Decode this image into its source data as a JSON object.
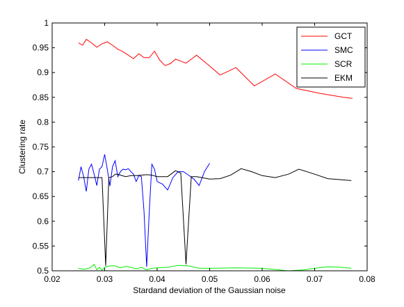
{
  "chart_data": {
    "type": "line",
    "xlabel": "Stardand deviation of the Gaussian noise",
    "ylabel": "Clustering rate",
    "xlim": [
      0.02,
      0.08
    ],
    "ylim": [
      0.5,
      1.0
    ],
    "x_ticks": [
      "0.02",
      "0.03",
      "0.04",
      "0.05",
      "0.06",
      "0.07",
      "0.08"
    ],
    "y_ticks": [
      "0.5",
      "0.55",
      "0.6",
      "0.65",
      "0.7",
      "0.75",
      "0.8",
      "0.85",
      "0.9",
      "0.95",
      "1"
    ],
    "grid": false,
    "legend_position": "top-right",
    "series": [
      {
        "name": "GCT",
        "color": "#ff0000",
        "x": [
          0.025,
          0.0258,
          0.0265,
          0.0275,
          0.0285,
          0.0295,
          0.0305,
          0.0315,
          0.0325,
          0.0335,
          0.0345,
          0.0355,
          0.0365,
          0.0375,
          0.0385,
          0.0395,
          0.0405,
          0.0415,
          0.0425,
          0.0435,
          0.0445,
          0.0455,
          0.0465,
          0.0475,
          0.049,
          0.052,
          0.055,
          0.0585,
          0.0625,
          0.0665,
          0.071,
          0.0755,
          0.0772
        ],
        "y": [
          0.96,
          0.955,
          0.967,
          0.96,
          0.951,
          0.958,
          0.962,
          0.955,
          0.947,
          0.942,
          0.935,
          0.928,
          0.938,
          0.93,
          0.93,
          0.943,
          0.925,
          0.914,
          0.918,
          0.927,
          0.923,
          0.919,
          0.927,
          0.935,
          0.922,
          0.895,
          0.91,
          0.873,
          0.897,
          0.868,
          0.858,
          0.85,
          0.848
        ]
      },
      {
        "name": "SMC",
        "color": "#0000ff",
        "x": [
          0.025,
          0.0255,
          0.026,
          0.0265,
          0.027,
          0.0275,
          0.028,
          0.0285,
          0.029,
          0.0295,
          0.03,
          0.0305,
          0.031,
          0.0315,
          0.032,
          0.0325,
          0.033,
          0.0335,
          0.034,
          0.0345,
          0.035,
          0.0355,
          0.036,
          0.0365,
          0.037,
          0.0375,
          0.038,
          0.0385,
          0.039,
          0.0395,
          0.04,
          0.041,
          0.042,
          0.043,
          0.044,
          0.045,
          0.046,
          0.047,
          0.048,
          0.049,
          0.05
        ],
        "y": [
          0.682,
          0.71,
          0.69,
          0.66,
          0.705,
          0.715,
          0.695,
          0.672,
          0.705,
          0.71,
          0.735,
          0.705,
          0.671,
          0.71,
          0.722,
          0.69,
          0.7,
          0.705,
          0.704,
          0.706,
          0.7,
          0.695,
          0.68,
          0.692,
          0.69,
          0.62,
          0.508,
          0.62,
          0.715,
          0.705,
          0.68,
          0.675,
          0.663,
          0.688,
          0.7,
          0.7,
          0.693,
          0.685,
          0.672,
          0.7,
          0.717
        ]
      },
      {
        "name": "SCR",
        "color": "#00ee00",
        "x": [
          0.025,
          0.026,
          0.027,
          0.0275,
          0.028,
          0.0285,
          0.029,
          0.0295,
          0.03,
          0.031,
          0.032,
          0.033,
          0.034,
          0.035,
          0.036,
          0.037,
          0.038,
          0.039,
          0.04,
          0.042,
          0.044,
          0.046,
          0.048,
          0.05,
          0.055,
          0.06,
          0.065,
          0.068,
          0.07,
          0.0725,
          0.075,
          0.077
        ],
        "y": [
          0.505,
          0.503,
          0.505,
          0.508,
          0.513,
          0.502,
          0.507,
          0.501,
          0.507,
          0.51,
          0.51,
          0.506,
          0.509,
          0.507,
          0.504,
          0.507,
          0.502,
          0.505,
          0.506,
          0.507,
          0.511,
          0.51,
          0.505,
          0.505,
          0.506,
          0.505,
          0.5,
          0.502,
          0.505,
          0.508,
          0.507,
          0.505
        ]
      },
      {
        "name": "EKM",
        "color": "#000000",
        "x": [
          0.025,
          0.026,
          0.027,
          0.0285,
          0.0295,
          0.0302,
          0.0308,
          0.0315,
          0.032,
          0.0325,
          0.033,
          0.034,
          0.035,
          0.036,
          0.037,
          0.038,
          0.039,
          0.04,
          0.041,
          0.042,
          0.0435,
          0.0445,
          0.0455,
          0.0465,
          0.0475,
          0.0485,
          0.05,
          0.052,
          0.054,
          0.056,
          0.058,
          0.06,
          0.0625,
          0.065,
          0.067,
          0.07,
          0.0725,
          0.077
        ],
        "y": [
          0.688,
          0.688,
          0.688,
          0.688,
          0.688,
          0.51,
          0.688,
          0.69,
          0.695,
          0.695,
          0.693,
          0.69,
          0.692,
          0.692,
          0.693,
          0.694,
          0.693,
          0.69,
          0.69,
          0.69,
          0.702,
          0.697,
          0.513,
          0.69,
          0.69,
          0.688,
          0.685,
          0.686,
          0.693,
          0.706,
          0.7,
          0.692,
          0.688,
          0.695,
          0.705,
          0.695,
          0.686,
          0.682
        ]
      }
    ]
  }
}
